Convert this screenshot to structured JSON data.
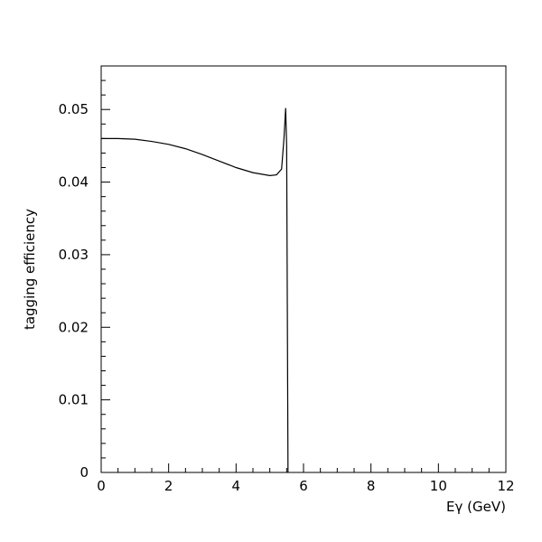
{
  "chart_data": {
    "type": "line",
    "x_label": "Eγ (GeV)",
    "y_label": "tagging efficiency",
    "xlim": [
      0,
      12
    ],
    "xticks": [
      0,
      2,
      4,
      6,
      8,
      10,
      12
    ],
    "ylim": [
      0,
      0.056
    ],
    "yticks": [
      0,
      0.01,
      0.02,
      0.03,
      0.04,
      0.05
    ],
    "grid": false,
    "series": [
      {
        "color": "#000000",
        "x": [
          0,
          0.5,
          1,
          1.5,
          2,
          2.5,
          3,
          3.5,
          4,
          4.5,
          5,
          5.2,
          5.35,
          5.42,
          5.47,
          5.5,
          5.54
        ],
        "values": [
          0.046,
          0.046,
          0.0459,
          0.0456,
          0.0452,
          0.0446,
          0.0438,
          0.0429,
          0.042,
          0.0413,
          0.0409,
          0.041,
          0.0418,
          0.046,
          0.0502,
          0.045,
          0
        ]
      }
    ]
  }
}
